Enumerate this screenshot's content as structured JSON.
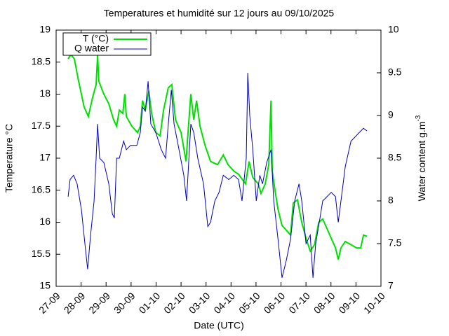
{
  "chart_data": {
    "type": "line",
    "title": "Temperatures et humidité sur 12 jours au 09/10/2025",
    "xlabel": "Date (UTC)",
    "ylabel": "Temperature °C",
    "y2label": "Water content g.m",
    "y2label_superscript": "-3",
    "xlim": [
      0,
      13
    ],
    "xticks": [
      {
        "value": 0,
        "label": "27-09"
      },
      {
        "value": 1,
        "label": "28-09"
      },
      {
        "value": 2,
        "label": "29-09"
      },
      {
        "value": 3,
        "label": "30-09"
      },
      {
        "value": 4,
        "label": "01-10"
      },
      {
        "value": 5,
        "label": "02-10"
      },
      {
        "value": 6,
        "label": "03-10"
      },
      {
        "value": 7,
        "label": "04-10"
      },
      {
        "value": 8,
        "label": "05-10"
      },
      {
        "value": 9,
        "label": "06-10"
      },
      {
        "value": 10,
        "label": "07-10"
      },
      {
        "value": 11,
        "label": "08-10"
      },
      {
        "value": 12,
        "label": "09-10"
      },
      {
        "value": 13,
        "label": "10-10"
      }
    ],
    "ylim": [
      15,
      19
    ],
    "yticks": [
      15,
      15.5,
      16,
      16.5,
      17,
      17.5,
      18,
      18.5,
      19
    ],
    "y2lim": [
      7,
      10
    ],
    "y2ticks": [
      7,
      7.5,
      8,
      8.5,
      9,
      9.5,
      10
    ],
    "legend": "upper left",
    "series": [
      {
        "name": "T (°C)",
        "color": "#00e000",
        "x": [
          0.48,
          0.59,
          0.73,
          0.9,
          1.12,
          1.29,
          1.46,
          1.6,
          1.66,
          1.71,
          1.91,
          2.11,
          2.3,
          2.42,
          2.53,
          2.67,
          2.75,
          2.81,
          3.03,
          3.26,
          3.37,
          3.46,
          3.57,
          3.71,
          3.82,
          3.99,
          4.16,
          4.3,
          4.49,
          4.63,
          4.78,
          5.0,
          5.2,
          5.28,
          5.39,
          5.51,
          5.62,
          5.76,
          5.96,
          6.18,
          6.46,
          6.69,
          6.88,
          7.11,
          7.3,
          7.58,
          7.72,
          7.87,
          8.09,
          8.2,
          8.37,
          8.51,
          8.6,
          8.65,
          8.76,
          8.88,
          9.04,
          9.27,
          9.38,
          9.49,
          9.66,
          9.83,
          10.0,
          10.17,
          10.34,
          10.51,
          10.67,
          10.84,
          11.01,
          11.18,
          11.29,
          11.4,
          11.57,
          11.8,
          12.02,
          12.19,
          12.3,
          12.44
        ],
        "values": [
          18.55,
          18.62,
          18.55,
          18.2,
          17.8,
          17.65,
          17.95,
          18.15,
          18.6,
          18.2,
          18.0,
          17.85,
          17.6,
          17.5,
          17.75,
          17.7,
          18.0,
          17.65,
          17.5,
          17.4,
          17.5,
          17.9,
          17.75,
          18.05,
          17.7,
          17.4,
          17.35,
          17.75,
          18.1,
          18.15,
          17.6,
          17.4,
          16.95,
          17.4,
          18.0,
          17.6,
          17.9,
          17.5,
          17.2,
          16.95,
          16.9,
          17.05,
          16.9,
          16.8,
          16.75,
          16.6,
          16.95,
          16.7,
          16.6,
          16.45,
          16.6,
          16.9,
          17.9,
          16.8,
          16.5,
          16.2,
          15.95,
          15.85,
          15.8,
          16.3,
          16.35,
          16.0,
          15.75,
          15.55,
          15.65,
          16.0,
          16.05,
          15.9,
          15.75,
          15.6,
          15.42,
          15.6,
          15.7,
          15.65,
          15.6,
          15.6,
          15.8,
          15.78
        ]
      },
      {
        "name": "Q water",
        "color": "#0000c0",
        "axis": "y2",
        "x": [
          0.48,
          0.56,
          0.7,
          0.84,
          1.01,
          1.15,
          1.26,
          1.38,
          1.52,
          1.6,
          1.66,
          1.74,
          1.91,
          2.11,
          2.25,
          2.33,
          2.42,
          2.53,
          2.7,
          2.81,
          2.98,
          3.23,
          3.37,
          3.46,
          3.57,
          3.68,
          3.79,
          3.99,
          4.21,
          4.38,
          4.49,
          4.61,
          4.72,
          4.92,
          5.11,
          5.22,
          5.39,
          5.51,
          5.67,
          5.9,
          6.07,
          6.18,
          6.35,
          6.52,
          6.69,
          6.91,
          7.11,
          7.3,
          7.44,
          7.61,
          7.67,
          7.75,
          7.87,
          8.01,
          8.15,
          8.26,
          8.43,
          8.6,
          8.71,
          8.88,
          9.04,
          9.21,
          9.38,
          9.55,
          9.72,
          9.83,
          10.0,
          10.17,
          10.28,
          10.39,
          10.56,
          10.67,
          10.84,
          11.01,
          11.18,
          11.29,
          11.4,
          11.57,
          11.8,
          11.97,
          12.13,
          12.3,
          12.44
        ],
        "values": [
          8.05,
          8.25,
          8.3,
          8.2,
          7.9,
          7.5,
          7.2,
          7.6,
          8.0,
          8.5,
          8.9,
          8.5,
          8.45,
          8.2,
          7.85,
          7.8,
          8.5,
          8.5,
          8.7,
          8.6,
          8.65,
          8.65,
          8.8,
          9.1,
          9.05,
          9.4,
          8.9,
          8.8,
          8.6,
          8.5,
          8.9,
          9.3,
          8.9,
          8.6,
          8.3,
          8.0,
          8.9,
          8.8,
          8.5,
          8.2,
          7.7,
          7.75,
          8.0,
          8.1,
          8.3,
          8.25,
          8.3,
          8.25,
          8.0,
          8.5,
          9.5,
          9.0,
          8.6,
          8.0,
          8.3,
          8.2,
          8.45,
          8.6,
          8.0,
          7.55,
          7.1,
          7.3,
          7.55,
          8.0,
          8.2,
          8.0,
          7.5,
          7.6,
          7.1,
          7.5,
          7.8,
          8.0,
          8.05,
          8.1,
          8.05,
          7.75,
          8.0,
          8.4,
          8.7,
          8.75,
          8.8,
          8.85,
          8.82
        ]
      }
    ]
  }
}
